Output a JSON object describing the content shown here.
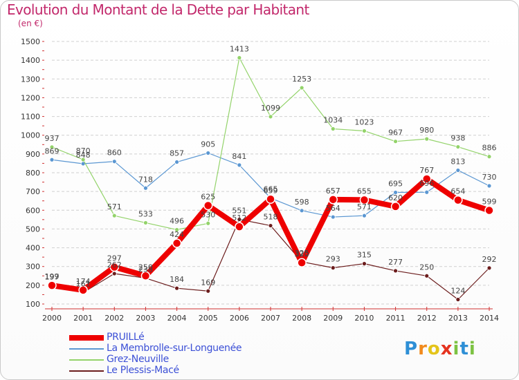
{
  "title": "Evolution du Montant de la Dette par Habitant",
  "unit": "(en €)",
  "logo": {
    "text": "Proxiti",
    "letters": [
      "P",
      "r",
      "o",
      "x",
      "i",
      "t",
      "i"
    ],
    "colors": [
      "#2e8fd6",
      "#f18a1d",
      "#e4c41a",
      "#e5331f",
      "#7cc242",
      "#2e8fd6",
      "#7cc242"
    ]
  },
  "chart_data": {
    "type": "line",
    "title": "Evolution du Montant de la Dette par Habitant",
    "ylabel": "(en €)",
    "xlabel": "",
    "ylim": [
      100,
      1500
    ],
    "yticks": [
      100,
      200,
      300,
      400,
      500,
      600,
      700,
      800,
      900,
      1000,
      1100,
      1200,
      1300,
      1400,
      1500
    ],
    "grid": "dashed horizontal",
    "legend_position": "bottom-left",
    "categories": [
      "2000",
      "2001",
      "2002",
      "2003",
      "2004",
      "2005",
      "2006",
      "2007",
      "2008",
      "2009",
      "2010",
      "2011",
      "2012",
      "2013",
      "2014"
    ],
    "series": [
      {
        "name": "Le Plessis-Macé",
        "color": "#6b1c1c",
        "width": 1.2,
        "values": [
          197,
          161,
          262,
          238,
          184,
          169,
          551,
          518,
          325,
          293,
          315,
          277,
          250,
          124,
          292
        ],
        "labels": [
          "197",
          "161",
          "262",
          "238",
          "184",
          "169",
          "551",
          "518",
          "325",
          "293",
          "315",
          "277",
          "250",
          "124",
          "292"
        ]
      },
      {
        "name": "La Membrolle-sur-Longuenée",
        "color": "#5b97d2",
        "width": 1.2,
        "values": [
          869,
          848,
          860,
          718,
          857,
          905,
          841,
          665,
          598,
          564,
          571,
          695,
          696,
          813,
          730
        ],
        "labels": [
          "869",
          "848",
          "860",
          "718",
          "857",
          "905",
          "841",
          "665",
          "598",
          "564",
          "571",
          "695",
          "696",
          "813",
          "730"
        ]
      },
      {
        "name": "Grez-Neuville",
        "color": "#93d36a",
        "width": 1.2,
        "values": [
          937,
          870,
          571,
          533,
          496,
          530,
          null,
          1099,
          1253,
          1034,
          1023,
          967,
          980,
          938,
          886
        ],
        "extra_segment": [
          [
            5,
            530
          ],
          [
            6,
            1413
          ],
          [
            7,
            1099
          ]
        ],
        "extra_label": "1413",
        "labels": [
          "937",
          "870",
          "571",
          "533",
          "496",
          "530",
          null,
          "1099",
          "1253",
          "1034",
          "1023",
          "967",
          "980",
          "938",
          "886"
        ]
      },
      {
        "name": "PRUILLé",
        "color": "#ee0000",
        "width": 8,
        "values": [
          199,
          174,
          297,
          250,
          424,
          625,
          512,
          659,
          320,
          657,
          655,
          620,
          767,
          654,
          599
        ],
        "labels": [
          "199",
          "174",
          "297",
          "250",
          "424",
          "625",
          "512",
          "659",
          "320",
          "657",
          "655",
          "620",
          "767",
          "654",
          "599"
        ]
      }
    ]
  },
  "legend": {
    "items": [
      {
        "name": "PRUILLé",
        "color": "#ee0000",
        "thickness": 8
      },
      {
        "name": "La Membrolle-sur-Longuenée",
        "color": "#5b97d2",
        "thickness": 2
      },
      {
        "name": "Grez-Neuville",
        "color": "#93d36a",
        "thickness": 2
      },
      {
        "name": "Le Plessis-Macé",
        "color": "#6b1c1c",
        "thickness": 2
      }
    ]
  }
}
